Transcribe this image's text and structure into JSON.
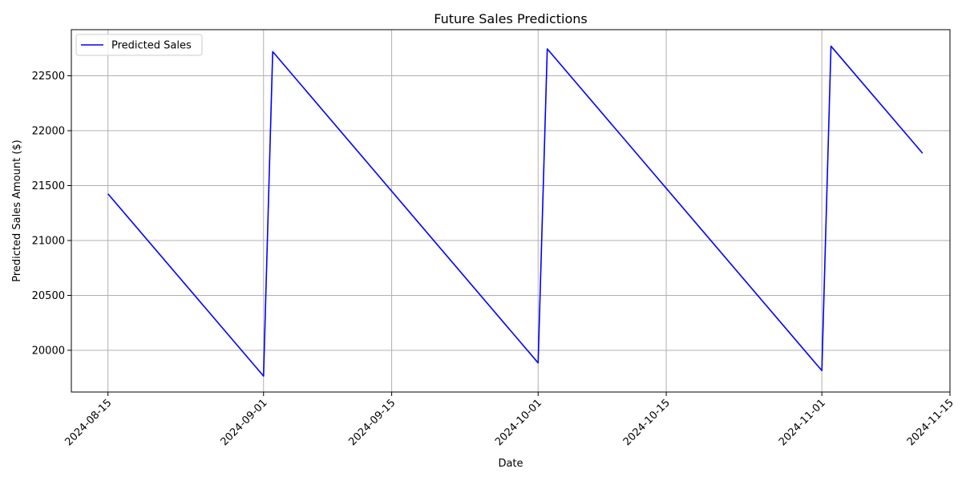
{
  "chart_data": {
    "type": "line",
    "title": "Future Sales Predictions",
    "xlabel": "Date",
    "ylabel": "Predicted Sales Amount ($)",
    "x_type": "date",
    "xlim": [
      "2024-08-11",
      "2024-11-15"
    ],
    "ylim": [
      19620,
      22920
    ],
    "x_ticks": [
      "2024-08-15",
      "2024-09-01",
      "2024-09-15",
      "2024-10-01",
      "2024-10-15",
      "2024-11-01",
      "2024-11-15"
    ],
    "y_ticks": [
      20000,
      20500,
      21000,
      21500,
      22000,
      22500
    ],
    "grid": true,
    "legend_position": "top-left",
    "series": [
      {
        "name": "Predicted Sales",
        "color": "#0000ff",
        "x": [
          "2024-08-15",
          "2024-09-01",
          "2024-09-02",
          "2024-10-01",
          "2024-10-02",
          "2024-11-01",
          "2024-11-02",
          "2024-11-12"
        ],
        "y": [
          21425,
          19765,
          22720,
          19885,
          22745,
          19815,
          22770,
          21795
        ]
      }
    ]
  }
}
